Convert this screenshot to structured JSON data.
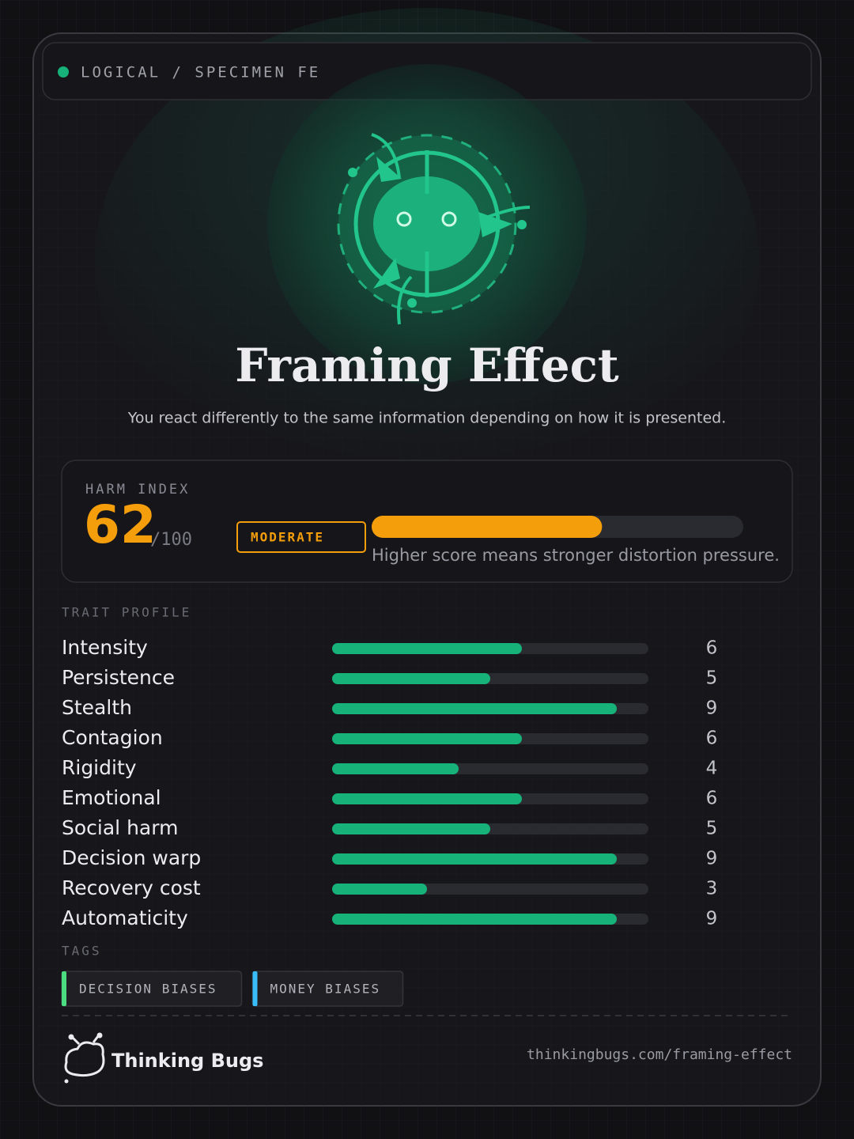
{
  "header": {
    "category": "LOGICAL / SPECIMEN FE"
  },
  "title": "Framing Effect",
  "description": "You react differently to the same information depending on how it is presented.",
  "harm_index": {
    "label": "HARM INDEX",
    "score": 62,
    "max": {
      "value": 100,
      "label": "/100"
    },
    "level": "MODERATE",
    "caption": "Higher score means stronger distortion pressure."
  },
  "trait_profile": {
    "label": "TRAIT PROFILE",
    "range": [
      0,
      10
    ],
    "traits": [
      {
        "name": "Intensity",
        "value": 6
      },
      {
        "name": "Persistence",
        "value": 5
      },
      {
        "name": "Stealth",
        "value": 9
      },
      {
        "name": "Contagion",
        "value": 6
      },
      {
        "name": "Rigidity",
        "value": 4
      },
      {
        "name": "Emotional",
        "value": 6
      },
      {
        "name": "Social harm",
        "value": 5
      },
      {
        "name": "Decision warp",
        "value": 9
      },
      {
        "name": "Recovery cost",
        "value": 3
      },
      {
        "name": "Automaticity",
        "value": 9
      }
    ]
  },
  "tags": {
    "label": "TAGS",
    "items": [
      {
        "name": "DECISION BIASES",
        "color": "#4ade80"
      },
      {
        "name": "MONEY BIASES",
        "color": "#38bdf8"
      }
    ]
  },
  "footer": {
    "brand": "Thinking Bugs",
    "url": "thinkingbugs.com/framing-effect"
  }
}
